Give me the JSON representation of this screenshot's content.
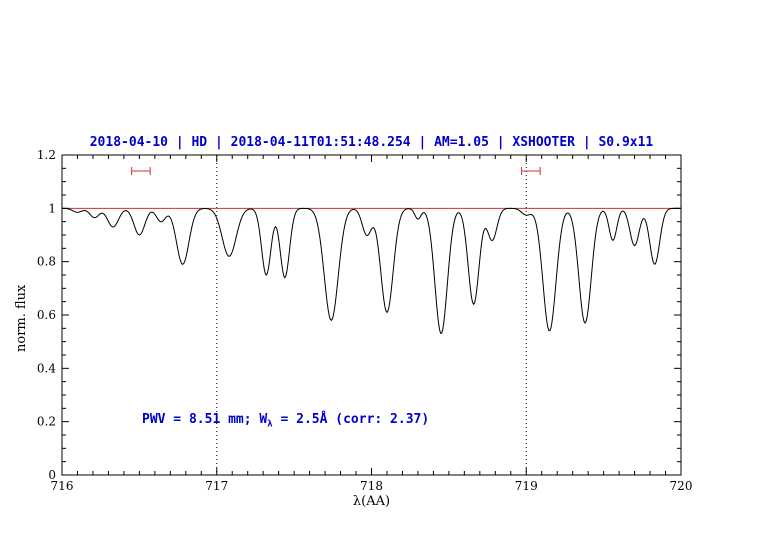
{
  "page": {
    "background": "#ffffff"
  },
  "chart_data": {
    "type": "line",
    "title": "2018-04-10 | HD | 2018-04-11T01:51:48.254 | AM=1.05 | XSHOOTER | S0.9x11",
    "xlabel": "λ(AA)",
    "ylabel": "norm. flux",
    "xlim": [
      716,
      720
    ],
    "ylim": [
      0,
      1.2
    ],
    "xticks": [
      716,
      717,
      718,
      719,
      720
    ],
    "xtick_labels": [
      "716",
      "717",
      "718",
      "719",
      "720"
    ],
    "yticks": [
      0,
      0.2,
      0.4,
      0.6,
      0.8,
      1,
      1.2
    ],
    "ytick_labels": [
      "0",
      "0.2",
      "0.4",
      "0.6",
      "0.8",
      "1",
      "1.2"
    ],
    "minor_tick_step_x": 0.1,
    "minor_tick_step_y": 0.05,
    "grid": false,
    "legend_position": "none",
    "colors": {
      "title": "#0000cc",
      "red": "#cc3333",
      "spectrum": "#000000"
    },
    "continuum": {
      "y": 1.0
    },
    "dotted_vlines": [
      717,
      719
    ],
    "range_markers": [
      {
        "x1": 716.45,
        "x2": 716.57,
        "y": 1.14
      },
      {
        "x1": 718.97,
        "x2": 719.09,
        "y": 1.14
      }
    ],
    "annotation": {
      "text": "PWV = 8.51 mm; Wλ = 2.5Å (corr: 2.37)",
      "pre": "PWV = 8.51 mm; W",
      "sub": "λ",
      "post": " = 2.5Å (corr: 2.37)",
      "x": 716.52,
      "y": 0.2
    },
    "series": [
      {
        "name": "telluric absorption spectrum",
        "color": "#000000",
        "model": "continuum minus gaussian absorption lines"
      }
    ],
    "absorption_lines": [
      {
        "center": 716.1,
        "depth": 0.015,
        "sigma": 0.03
      },
      {
        "center": 716.21,
        "depth": 0.035,
        "sigma": 0.03
      },
      {
        "center": 716.33,
        "depth": 0.07,
        "sigma": 0.035
      },
      {
        "center": 716.5,
        "depth": 0.1,
        "sigma": 0.035
      },
      {
        "center": 716.64,
        "depth": 0.05,
        "sigma": 0.03
      },
      {
        "center": 716.78,
        "depth": 0.21,
        "sigma": 0.04
      },
      {
        "center": 717.08,
        "depth": 0.18,
        "sigma": 0.045
      },
      {
        "center": 717.32,
        "depth": 0.25,
        "sigma": 0.03
      },
      {
        "center": 717.44,
        "depth": 0.26,
        "sigma": 0.03
      },
      {
        "center": 717.74,
        "depth": 0.42,
        "sigma": 0.045
      },
      {
        "center": 717.97,
        "depth": 0.1,
        "sigma": 0.03
      },
      {
        "center": 718.1,
        "depth": 0.39,
        "sigma": 0.04
      },
      {
        "center": 718.3,
        "depth": 0.04,
        "sigma": 0.02
      },
      {
        "center": 718.45,
        "depth": 0.47,
        "sigma": 0.04
      },
      {
        "center": 718.66,
        "depth": 0.36,
        "sigma": 0.035
      },
      {
        "center": 718.78,
        "depth": 0.12,
        "sigma": 0.03
      },
      {
        "center": 719.0,
        "depth": 0.025,
        "sigma": 0.03
      },
      {
        "center": 719.15,
        "depth": 0.46,
        "sigma": 0.042
      },
      {
        "center": 719.38,
        "depth": 0.43,
        "sigma": 0.04
      },
      {
        "center": 719.56,
        "depth": 0.12,
        "sigma": 0.025
      },
      {
        "center": 719.7,
        "depth": 0.14,
        "sigma": 0.03
      },
      {
        "center": 719.83,
        "depth": 0.21,
        "sigma": 0.032
      }
    ]
  }
}
